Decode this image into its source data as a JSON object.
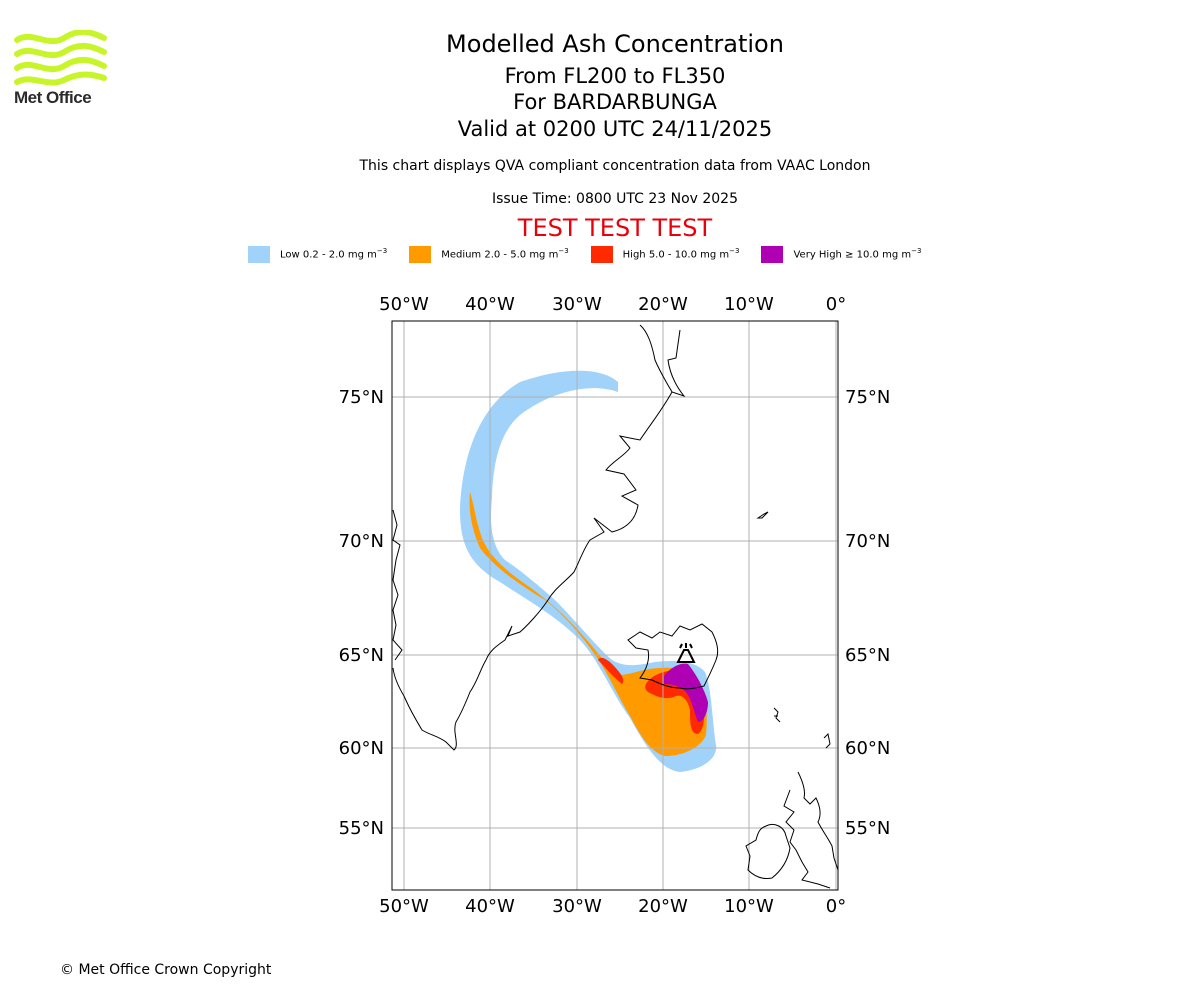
{
  "header": {
    "title": "Modelled Ash Concentration",
    "level_range": "From FL200 to FL350",
    "volcano_line": "For BARDARBUNGA",
    "valid_line": "Valid at 0200 UTC 24/11/2025",
    "note": "This chart displays QVA compliant concentration data from VAAC London",
    "issue_time": "Issue Time: 0800 UTC 23 Nov 2025",
    "test_banner": "TEST TEST TEST"
  },
  "logo": {
    "text": "Met Office",
    "color": "#c8f52a"
  },
  "legend": {
    "unit_label": "mg m",
    "unit_exp": "−3",
    "items": [
      {
        "name": "Low",
        "range": "Low 0.2 - 2.0",
        "color": "#a0d2fa"
      },
      {
        "name": "Medium",
        "range": "Medium 2.0 - 5.0",
        "color": "#ff9a00"
      },
      {
        "name": "High",
        "range": "High 5.0 - 10.0",
        "color": "#ff2a00"
      },
      {
        "name": "Very High",
        "range": "Very High  ≥  10.0",
        "color": "#b000b4"
      }
    ]
  },
  "map": {
    "lon_labels": [
      "50°W",
      "40°W",
      "30°W",
      "20°W",
      "10°W",
      "0°"
    ],
    "lat_labels": [
      "75°N",
      "70°N",
      "65°N",
      "60°N",
      "55°N"
    ],
    "volcano_symbol": "volcano-icon"
  },
  "footer": {
    "copyright": "© Met Office Crown Copyright"
  }
}
